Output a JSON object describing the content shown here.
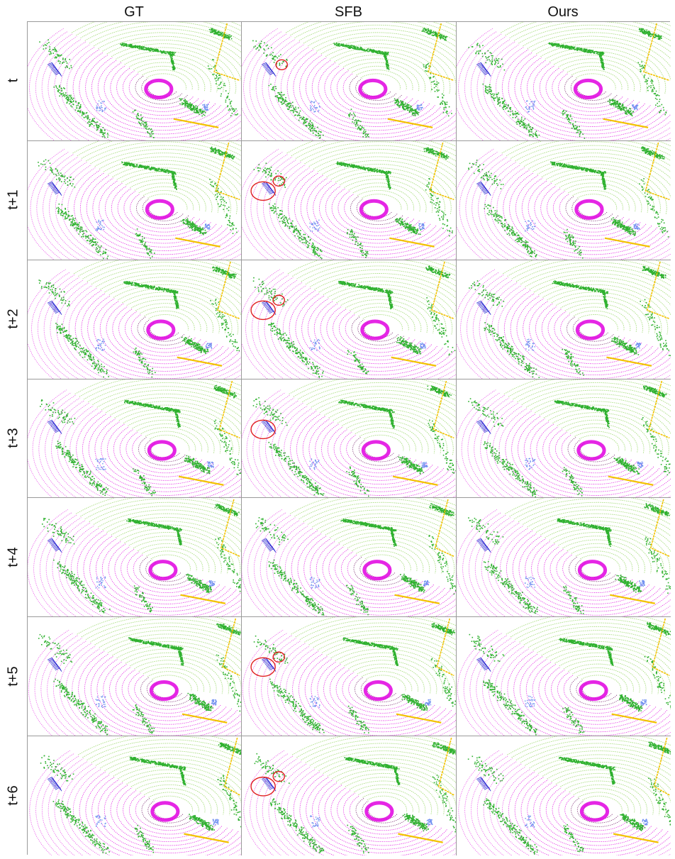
{
  "columns": [
    "GT",
    "SFB",
    "Ours"
  ],
  "rows": [
    "t",
    "t+1",
    "t+2",
    "t+3",
    "t+4",
    "t+5",
    "t+6"
  ],
  "colors": {
    "road": "#e000e0",
    "road_dark": "#6a1060",
    "vegetation": "#2fb12f",
    "terrain": "#9ad86a",
    "car": "#2a2ad0",
    "person": "#6f8ff0",
    "sidewalk": "#f2c200",
    "highlight_circle": "#e02020",
    "grid_line": "#9a9a9a"
  },
  "highlights": {
    "SFB": [
      {
        "row": 0,
        "count": 1
      },
      {
        "row": 1,
        "count": 2
      },
      {
        "row": 2,
        "count": 2
      },
      {
        "row": 3,
        "count": 1
      },
      {
        "row": 4,
        "count": 0
      },
      {
        "row": 5,
        "count": 2
      },
      {
        "row": 6,
        "count": 2
      }
    ]
  }
}
